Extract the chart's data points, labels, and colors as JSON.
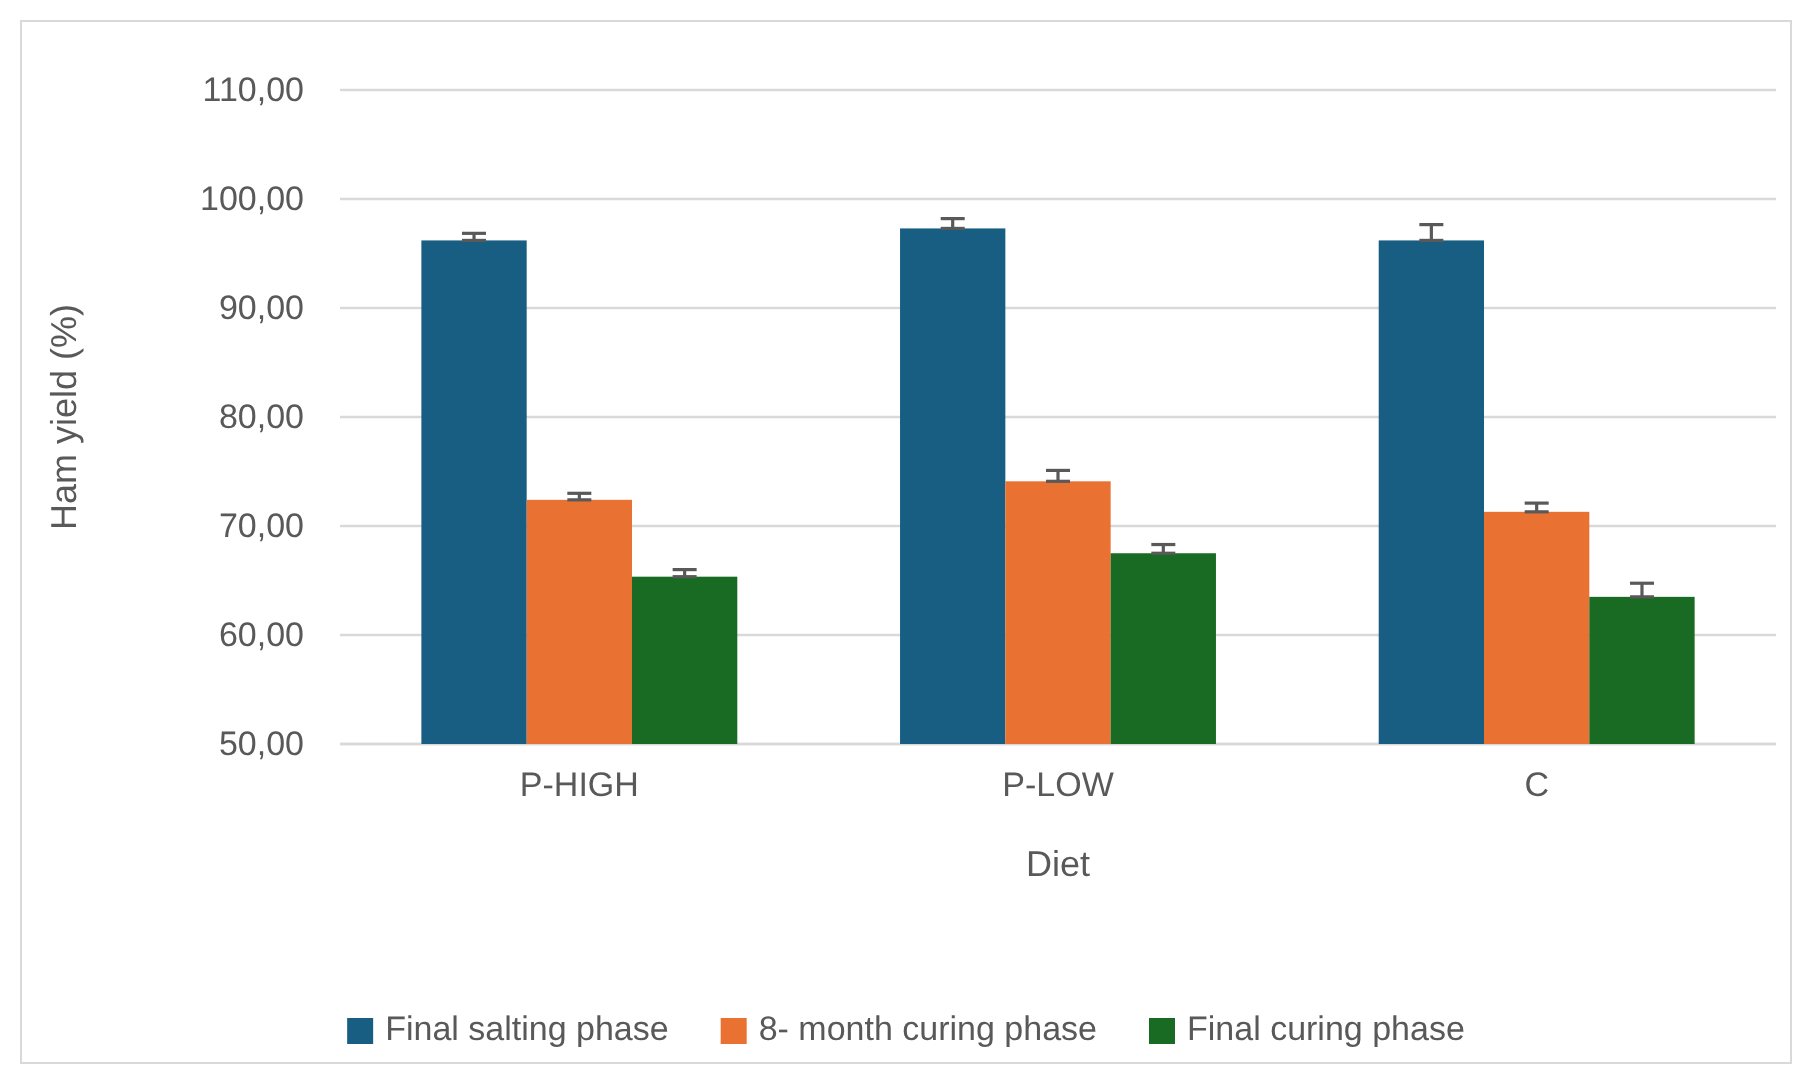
{
  "chart_data": {
    "type": "bar",
    "xlabel": "Diet",
    "ylabel": "Ham yield (%)",
    "categories": [
      "P-HIGH",
      "P-LOW",
      "C"
    ],
    "series": [
      {
        "name": "Final salting phase",
        "color": "#175e82",
        "values": [
          96.2,
          97.3,
          96.2
        ],
        "errors": [
          [
            96.2,
            96.85
          ],
          [
            97.3,
            98.2
          ],
          [
            96.2,
            97.65
          ]
        ]
      },
      {
        "name": "8- month curing phase",
        "color": "#e97132",
        "values": [
          72.4,
          74.1,
          71.3
        ],
        "errors": [
          [
            72.4,
            73.0
          ],
          [
            74.1,
            75.1
          ],
          [
            71.3,
            72.1
          ]
        ]
      },
      {
        "name": "Final curing phase",
        "color": "#196b24",
        "values": [
          65.35,
          67.5,
          63.5
        ],
        "errors": [
          [
            65.35,
            66.0
          ],
          [
            67.5,
            68.3
          ],
          [
            63.5,
            64.75
          ]
        ]
      }
    ],
    "ylim": [
      50,
      110
    ],
    "yticks": [
      {
        "value": 50,
        "label": "50,00"
      },
      {
        "value": 60,
        "label": "60,00"
      },
      {
        "value": 70,
        "label": "70,00"
      },
      {
        "value": 80,
        "label": "80,00"
      },
      {
        "value": 90,
        "label": "90,00"
      },
      {
        "value": 100,
        "label": "100,00"
      },
      {
        "value": 110,
        "label": "110,00"
      }
    ],
    "grid": "y",
    "legend": "bottom"
  }
}
